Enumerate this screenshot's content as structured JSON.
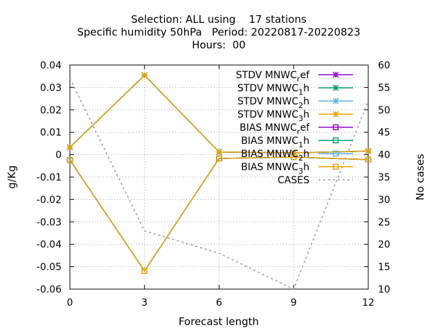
{
  "chart_data": {
    "type": "line",
    "title_lines": [
      "Selection: ALL using    17 stations",
      "Specific humidity 50hPa   Period: 20220817-20220823",
      "Hours:  00"
    ],
    "xlabel": "Forecast length",
    "ylabel": "g/Kg",
    "y2label": "No cases",
    "x_ticks": [
      0,
      3,
      6,
      9,
      12
    ],
    "xlim": [
      0,
      12
    ],
    "ylim": [
      -0.06,
      0.04
    ],
    "y_ticks": [
      0.04,
      0.03,
      0.02,
      0.01,
      0,
      -0.01,
      -0.02,
      -0.03,
      -0.04,
      -0.05,
      -0.06
    ],
    "y_tick_labels": [
      "0.04",
      "0.03",
      "0.02",
      "0.01",
      "0",
      "-0.01",
      "-0.02",
      "-0.03",
      "-0.04",
      "-0.05",
      "-0.06"
    ],
    "y2lim": [
      10,
      60
    ],
    "y2_ticks": [
      60,
      55,
      50,
      45,
      40,
      35,
      30,
      25,
      20,
      15,
      10
    ],
    "grid": true,
    "legend_position": "top-right",
    "series": [
      {
        "name": "STDV MNWC_ref",
        "color": "#9400d3",
        "marker": "star",
        "dash": "",
        "axis": "y1",
        "x": [
          0,
          3,
          6,
          9,
          12
        ],
        "values": [
          0.0033,
          0.0354,
          0.0012,
          0.0008,
          0.0016
        ]
      },
      {
        "name": "STDV MNWC_1h",
        "color": "#009e73",
        "marker": "star",
        "dash": "",
        "axis": "y1",
        "x": [
          0,
          3,
          6,
          9,
          12
        ],
        "values": [
          0.0033,
          0.0354,
          0.0012,
          0.0008,
          0.0016
        ]
      },
      {
        "name": "STDV MNWC_2h",
        "color": "#56b4e9",
        "marker": "star",
        "dash": "",
        "axis": "y1",
        "x": [
          0,
          3,
          6,
          9,
          12
        ],
        "values": [
          0.0033,
          0.0354,
          0.0012,
          0.0008,
          0.0016
        ]
      },
      {
        "name": "STDV MNWC_3h",
        "color": "#e69f00",
        "marker": "star",
        "dash": "",
        "axis": "y1",
        "x": [
          0,
          3,
          6,
          9,
          12
        ],
        "values": [
          0.0033,
          0.0354,
          0.0012,
          0.0008,
          0.0016
        ]
      },
      {
        "name": "BIAS MNWC_ref",
        "color": "#9400d3",
        "marker": "square",
        "dash": "",
        "axis": "y1",
        "x": [
          0,
          3,
          6,
          9,
          12
        ],
        "values": [
          -0.0024,
          -0.0519,
          -0.0017,
          -0.0011,
          -0.0022
        ]
      },
      {
        "name": "BIAS MNWC_1h",
        "color": "#009e73",
        "marker": "square",
        "dash": "",
        "axis": "y1",
        "x": [
          0,
          3,
          6,
          9,
          12
        ],
        "values": [
          -0.0024,
          -0.0519,
          -0.0017,
          -0.0011,
          -0.0022
        ]
      },
      {
        "name": "BIAS MNWC_2h",
        "color": "#56b4e9",
        "marker": "square",
        "dash": "",
        "axis": "y1",
        "x": [
          0,
          3,
          6,
          9,
          12
        ],
        "values": [
          -0.0024,
          -0.0519,
          -0.0017,
          -0.0011,
          -0.0022
        ]
      },
      {
        "name": "BIAS MNWC_3h",
        "color": "#e69f00",
        "marker": "square",
        "dash": "",
        "axis": "y1",
        "x": [
          0,
          3,
          6,
          9,
          12
        ],
        "values": [
          -0.0024,
          -0.0519,
          -0.0017,
          -0.0011,
          -0.0022
        ]
      },
      {
        "name": "CASES",
        "color": "#999999",
        "marker": "none",
        "dash": "3,4",
        "axis": "y2",
        "x": [
          0,
          3,
          6,
          9,
          12
        ],
        "values": [
          57,
          23,
          18,
          10,
          52
        ]
      }
    ]
  }
}
